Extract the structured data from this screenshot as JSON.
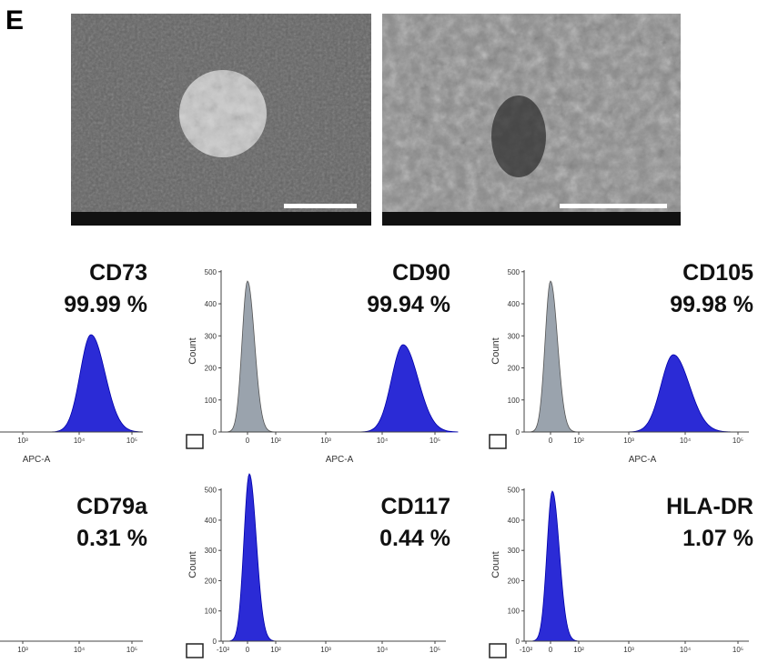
{
  "figure_label": "E",
  "panels": [
    {
      "marker": "CD73",
      "percent": "99.99 %",
      "x_ticks": [
        "10³",
        "10⁴",
        "10⁵"
      ],
      "x_label": "APC-A"
    },
    {
      "marker": "CD90",
      "percent": "99.94 %",
      "y_label": "Count",
      "y_ticks": [
        "0",
        "100",
        "200",
        "300",
        "400",
        "500"
      ],
      "x_ticks": [
        "0",
        "10²",
        "10³",
        "10⁴",
        "10⁵"
      ],
      "x_label": "APC-A"
    },
    {
      "marker": "CD105",
      "percent": "99.98 %",
      "y_label": "Count",
      "y_ticks": [
        "0",
        "100",
        "200",
        "300",
        "400",
        "500"
      ],
      "x_ticks": [
        "0",
        "10²",
        "10³",
        "10⁴",
        "10⁵"
      ],
      "x_label": "APC-A"
    },
    {
      "marker": "CD79a",
      "percent": "0.31 %",
      "x_ticks": [
        "10³",
        "10⁴",
        "10⁵"
      ]
    },
    {
      "marker": "CD117",
      "percent": "0.44 %",
      "y_label": "Count",
      "y_ticks": [
        "0",
        "100",
        "200",
        "300",
        "400",
        "500"
      ],
      "x_ticks": [
        "-10²",
        "0",
        "10²",
        "10³",
        "10⁴",
        "10⁵"
      ]
    },
    {
      "marker": "HLA-DR",
      "percent": "1.07 %",
      "y_label": "Count",
      "y_ticks": [
        "0",
        "100",
        "200",
        "300",
        "400",
        "500"
      ],
      "x_ticks": [
        "-10²",
        "0",
        "10²",
        "10³",
        "10⁴",
        "10⁵"
      ]
    }
  ]
}
